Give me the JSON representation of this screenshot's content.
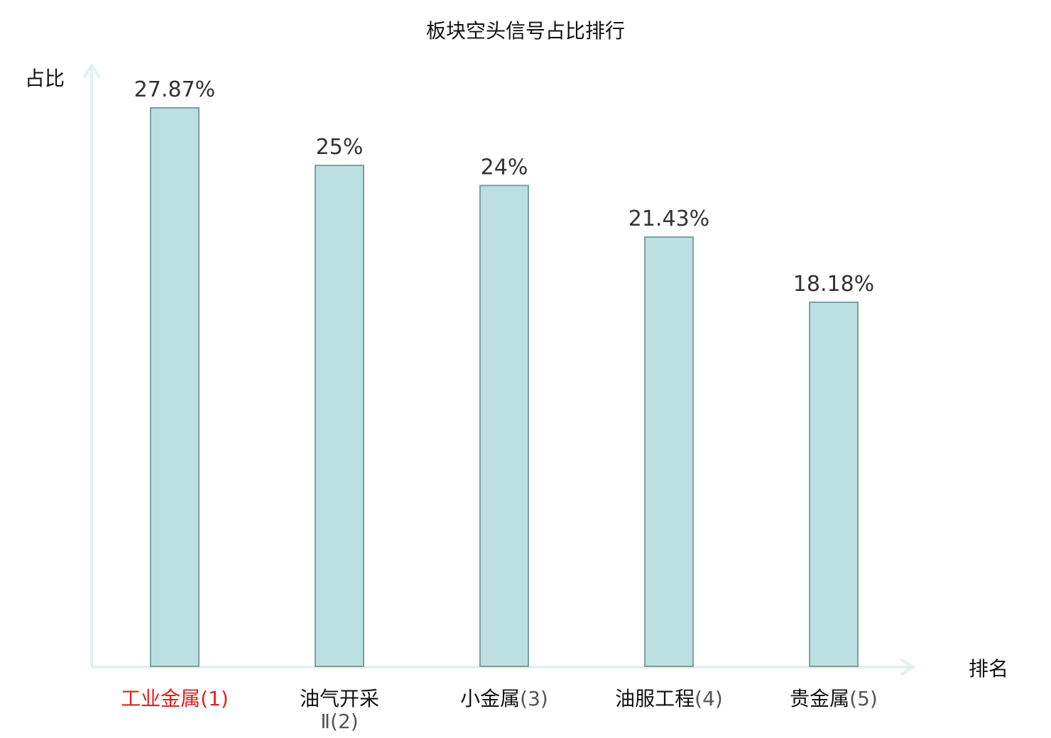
{
  "chart_data": {
    "type": "bar",
    "title": "板块空头信号占比排行",
    "xlabel": "排名",
    "ylabel": "占比",
    "ylim": [
      0,
      30
    ],
    "grid": false,
    "legend": "none",
    "categories": [
      {
        "name": "工业金属",
        "rank": "(1)",
        "highlight": true
      },
      {
        "name": "油气开采",
        "name2": "Ⅱ",
        "rank": "(2)",
        "highlight": false
      },
      {
        "name": "小金属",
        "rank": "(3)",
        "highlight": false
      },
      {
        "name": "油服工程",
        "rank": "(4)",
        "highlight": false
      },
      {
        "name": "贵金属",
        "rank": "(5)",
        "highlight": false
      }
    ],
    "values": [
      27.87,
      25,
      24,
      21.43,
      18.18
    ],
    "value_labels": [
      "27.87%",
      "25%",
      "24%",
      "21.43%",
      "18.18%"
    ]
  },
  "colors": {
    "bar_fill": "#bce0e2",
    "bar_stroke": "#7f9ea0",
    "axis": "#dff2ef",
    "highlight_text": "#e02020",
    "category_text": "#111111",
    "rank_text": "#555555",
    "value_text": "#333333"
  }
}
